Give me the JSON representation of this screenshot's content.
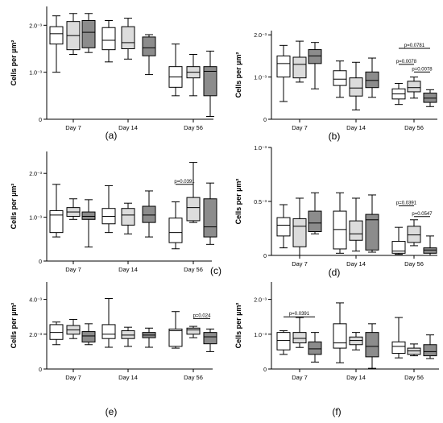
{
  "figure": {
    "panel_labels": [
      "(a)",
      "(b)",
      "(c)",
      "(d)",
      "(e)",
      "(f)"
    ],
    "group_fills": [
      "#ffffff",
      "#dcdcdc",
      "#8c8c8c"
    ]
  },
  "chart_data": [
    {
      "type": "box",
      "panel": "(a)",
      "ylabel": "Cells per µm²",
      "yticks": [
        {
          "value": 0,
          "label": "0"
        },
        {
          "value": 1,
          "label": "1.0⁻³"
        },
        {
          "value": 2,
          "label": "2.0⁻³"
        }
      ],
      "ylim": [
        0,
        2.4
      ],
      "categories": [
        "Day 7",
        "Day 14",
        "Day 56"
      ],
      "boxes": [
        [
          [
            1.0,
            1.6,
            1.82,
            1.97,
            2.2
          ],
          [
            1.38,
            1.48,
            1.78,
            2.08,
            2.25
          ],
          [
            1.42,
            1.52,
            1.85,
            2.1,
            2.25
          ]
        ],
        [
          [
            1.22,
            1.48,
            1.68,
            1.95,
            2.1
          ],
          [
            1.28,
            1.5,
            1.63,
            1.97,
            2.15
          ],
          [
            0.95,
            1.35,
            1.52,
            1.75,
            1.8
          ]
        ],
        [
          [
            0.5,
            0.68,
            0.9,
            1.12,
            1.6
          ],
          [
            0.5,
            0.88,
            1.0,
            1.12,
            1.38
          ],
          [
            0.06,
            0.5,
            1.02,
            1.12,
            1.45
          ]
        ]
      ],
      "annotations": []
    },
    {
      "type": "box",
      "panel": "(b)",
      "ylabel": "Cells per µm²",
      "yticks": [
        {
          "value": 0,
          "label": "0"
        },
        {
          "value": 1,
          "label": "1.0⁻³"
        },
        {
          "value": 2,
          "label": "2.0⁻³"
        }
      ],
      "ylim": [
        0,
        2.1
      ],
      "categories": [
        "Day 7",
        "Day 14",
        "Day 56"
      ],
      "boxes": [
        [
          [
            0.42,
            1.0,
            1.32,
            1.5,
            1.75
          ],
          [
            0.88,
            0.98,
            1.3,
            1.47,
            1.85
          ],
          [
            0.72,
            1.32,
            1.5,
            1.65,
            1.82
          ]
        ],
        [
          [
            0.52,
            0.8,
            0.95,
            1.15,
            1.38
          ],
          [
            0.22,
            0.55,
            0.74,
            0.98,
            1.35
          ],
          [
            0.52,
            0.75,
            0.92,
            1.12,
            1.45
          ]
        ],
        [
          [
            0.35,
            0.48,
            0.6,
            0.72,
            0.85
          ],
          [
            0.5,
            0.65,
            0.75,
            0.9,
            1.0
          ],
          [
            0.3,
            0.4,
            0.5,
            0.62,
            0.7
          ]
        ]
      ],
      "annotations": [
        {
          "text": "p=0.0781",
          "from": 0,
          "to": 2,
          "group": 2,
          "y": 1.68
        },
        {
          "text": "p=0.0078",
          "from": 0,
          "to": 1,
          "group": 2,
          "y": 1.3
        },
        {
          "text": "p=0.0078",
          "from": 1,
          "to": 2,
          "group": 2,
          "y": 1.12
        }
      ]
    },
    {
      "type": "box",
      "panel": "(c)",
      "ylabel": "Cells per µm²",
      "yticks": [
        {
          "value": 0,
          "label": "0"
        },
        {
          "value": 1,
          "label": "1.0⁻³"
        },
        {
          "value": 2,
          "label": "2.0⁻³"
        }
      ],
      "ylim": [
        0,
        2.5
      ],
      "categories": [
        "Day 7",
        "Day 14",
        "Day 56"
      ],
      "boxes": [
        [
          [
            0.55,
            0.65,
            1.05,
            1.15,
            1.75
          ],
          [
            0.95,
            1.02,
            1.12,
            1.22,
            1.42
          ],
          [
            0.32,
            0.95,
            1.02,
            1.12,
            1.4
          ]
        ],
        [
          [
            0.65,
            0.85,
            1.02,
            1.2,
            1.72
          ],
          [
            0.62,
            0.82,
            1.05,
            1.2,
            1.32
          ],
          [
            0.55,
            0.88,
            1.05,
            1.25,
            1.6
          ]
        ],
        [
          [
            0.28,
            0.42,
            0.65,
            0.98,
            1.35
          ],
          [
            0.88,
            0.92,
            1.22,
            1.45,
            2.25
          ],
          [
            0.38,
            0.55,
            0.78,
            1.42,
            1.78
          ]
        ]
      ],
      "annotations": [
        {
          "text": "p=0.0391",
          "from": 0,
          "to": 1,
          "group": 2,
          "y": 1.75
        }
      ]
    },
    {
      "type": "box",
      "panel": "(d)",
      "ylabel": "Cells per µm²",
      "yticks": [
        {
          "value": 0,
          "label": "0"
        },
        {
          "value": 0.5,
          "label": "0.5⁻³"
        },
        {
          "value": 1,
          "label": "1.0⁻³"
        }
      ],
      "ylim": [
        0,
        1.0
      ],
      "categories": [
        "Day 7",
        "Day 14",
        "Day 56"
      ],
      "boxes": [
        [
          [
            0.07,
            0.18,
            0.28,
            0.35,
            0.47
          ],
          [
            0.0,
            0.08,
            0.27,
            0.34,
            0.53
          ],
          [
            0.2,
            0.22,
            0.3,
            0.41,
            0.58
          ]
        ],
        [
          [
            0.02,
            0.06,
            0.24,
            0.41,
            0.58
          ],
          [
            0.04,
            0.14,
            0.2,
            0.32,
            0.53
          ],
          [
            0.03,
            0.05,
            0.33,
            0.38,
            0.56
          ]
        ],
        [
          [
            0.01,
            0.02,
            0.04,
            0.13,
            0.26
          ],
          [
            0.09,
            0.12,
            0.19,
            0.27,
            0.33
          ],
          [
            0.0,
            0.02,
            0.05,
            0.07,
            0.18
          ]
        ]
      ],
      "annotations": [
        {
          "text": "p=0.0391",
          "from": 0,
          "to": 1,
          "group": 2,
          "y": 0.46
        },
        {
          "text": "p=0.0547",
          "from": 1,
          "to": 2,
          "group": 2,
          "y": 0.36
        }
      ]
    },
    {
      "type": "box",
      "panel": "(e)",
      "ylabel": "Cells per µm²",
      "yticks": [
        {
          "value": 0,
          "label": "0"
        },
        {
          "value": 2,
          "label": "2.0⁻³"
        },
        {
          "value": 4,
          "label": "4.0⁻³"
        }
      ],
      "ylim": [
        0,
        5.0
      ],
      "categories": [
        "Day 7",
        "Day 14",
        "Day 56"
      ],
      "boxes": [
        [
          [
            1.4,
            1.7,
            2.1,
            2.55,
            2.7
          ],
          [
            1.75,
            2.0,
            2.25,
            2.5,
            2.85
          ],
          [
            1.4,
            1.55,
            1.9,
            2.15,
            2.6
          ]
        ],
        [
          [
            1.25,
            1.75,
            2.0,
            2.55,
            4.05
          ],
          [
            1.3,
            1.75,
            1.95,
            2.2,
            2.4
          ],
          [
            1.25,
            1.8,
            1.95,
            2.1,
            2.35
          ]
        ],
        [
          [
            1.2,
            1.3,
            2.2,
            2.3,
            3.3
          ],
          [
            1.8,
            2.0,
            2.25,
            2.35,
            2.45
          ],
          [
            1.0,
            1.45,
            1.85,
            2.1,
            2.3
          ]
        ]
      ],
      "annotations": [
        {
          "text": "p=0.024",
          "from": 1,
          "to": 2,
          "group": 2,
          "y": 2.9
        }
      ]
    },
    {
      "type": "box",
      "panel": "(f)",
      "ylabel": "Cells per µm²",
      "yticks": [
        {
          "value": 0,
          "label": "0"
        },
        {
          "value": 1,
          "label": "1.0⁻³"
        },
        {
          "value": 2,
          "label": "2.0⁻³"
        }
      ],
      "ylim": [
        0,
        2.5
      ],
      "categories": [
        "Day 7",
        "Day 14",
        "Day 56"
      ],
      "boxes": [
        [
          [
            0.42,
            0.55,
            0.82,
            1.05,
            1.1
          ],
          [
            0.62,
            0.75,
            0.88,
            1.05,
            1.48
          ],
          [
            0.2,
            0.42,
            0.58,
            0.78,
            1.05
          ]
        ],
        [
          [
            0.18,
            0.6,
            0.75,
            1.3,
            1.9
          ],
          [
            0.55,
            0.7,
            0.82,
            0.92,
            1.05
          ],
          [
            0.02,
            0.35,
            0.65,
            1.05,
            1.3
          ]
        ],
        [
          [
            0.32,
            0.45,
            0.65,
            0.78,
            1.48
          ],
          [
            0.38,
            0.42,
            0.52,
            0.6,
            0.72
          ],
          [
            0.3,
            0.38,
            0.5,
            0.7,
            0.98
          ]
        ]
      ],
      "annotations": [
        {
          "text": "p=0.0391",
          "from": 0,
          "to": 2,
          "group": 0,
          "y": 1.5
        }
      ]
    }
  ]
}
